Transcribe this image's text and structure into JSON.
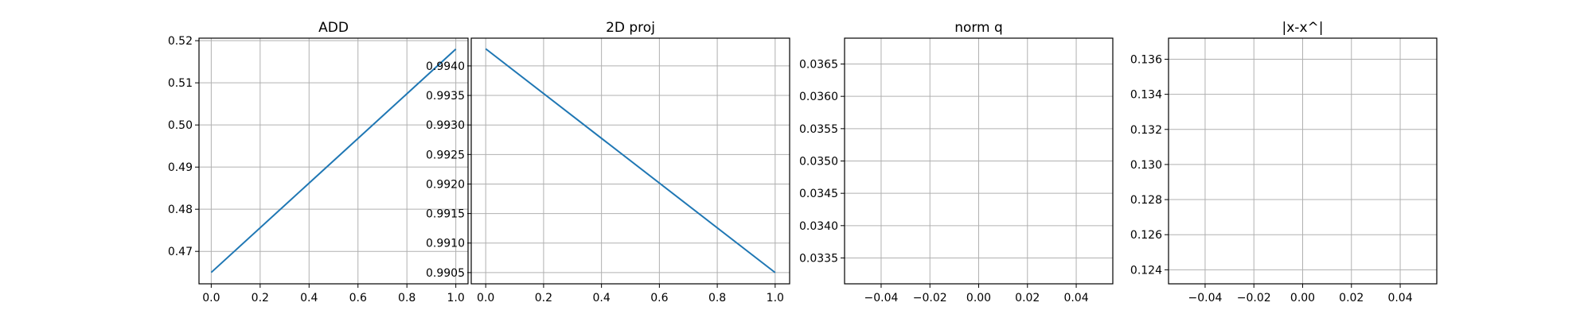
{
  "chart_data": [
    {
      "type": "line",
      "title": "ADD",
      "xlabel": "",
      "ylabel": "",
      "xlim": [
        -0.05,
        1.05
      ],
      "ylim": [
        0.4623,
        0.5206
      ],
      "xticks": [
        0.0,
        0.2,
        0.4,
        0.6,
        0.8,
        1.0
      ],
      "xtick_labels": [
        "0.0",
        "0.2",
        "0.4",
        "0.6",
        "0.8",
        "1.0"
      ],
      "yticks": [
        0.47,
        0.48,
        0.49,
        0.5,
        0.51,
        0.52
      ],
      "ytick_labels": [
        "0.47",
        "0.48",
        "0.49",
        "0.50",
        "0.51",
        "0.52"
      ],
      "grid": true,
      "series": [
        {
          "x": [
            0,
            1
          ],
          "y": [
            0.465,
            0.518
          ],
          "color": "#1f77b4"
        }
      ]
    },
    {
      "type": "line",
      "title": "2D proj",
      "xlabel": "",
      "ylabel": "",
      "xlim": [
        -0.05,
        1.05
      ],
      "ylim": [
        0.99031,
        0.99447
      ],
      "xticks": [
        0.0,
        0.2,
        0.4,
        0.6,
        0.8,
        1.0
      ],
      "xtick_labels": [
        "0.0",
        "0.2",
        "0.4",
        "0.6",
        "0.8",
        "1.0"
      ],
      "yticks": [
        0.9905,
        0.991,
        0.9915,
        0.992,
        0.9925,
        0.993,
        0.9935,
        0.994
      ],
      "ytick_labels": [
        "0.9905",
        "0.9910",
        "0.9915",
        "0.9920",
        "0.9925",
        "0.9930",
        "0.9935",
        "0.9940"
      ],
      "grid": true,
      "series": [
        {
          "x": [
            0,
            1
          ],
          "y": [
            0.99429,
            0.9905
          ],
          "color": "#1f77b4"
        }
      ]
    },
    {
      "type": "line",
      "title": "norm q",
      "xlabel": "",
      "ylabel": "",
      "xlim": [
        -0.055,
        0.055
      ],
      "ylim": [
        0.0331,
        0.0369
      ],
      "xticks": [
        -0.04,
        -0.02,
        0.0,
        0.02,
        0.04
      ],
      "xtick_labels": [
        "−0.04",
        "−0.02",
        "0.00",
        "0.02",
        "0.04"
      ],
      "yticks": [
        0.0335,
        0.034,
        0.0345,
        0.035,
        0.0355,
        0.036,
        0.0365
      ],
      "ytick_labels": [
        "0.0335",
        "0.0340",
        "0.0345",
        "0.0350",
        "0.0355",
        "0.0360",
        "0.0365"
      ],
      "grid": true,
      "series": []
    },
    {
      "type": "line",
      "title": "|x-x^|",
      "xlabel": "",
      "ylabel": "",
      "xlim": [
        -0.055,
        0.055
      ],
      "ylim": [
        0.1232,
        0.1372
      ],
      "xticks": [
        -0.04,
        -0.02,
        0.0,
        0.02,
        0.04
      ],
      "xtick_labels": [
        "−0.04",
        "−0.02",
        "0.00",
        "0.02",
        "0.04"
      ],
      "yticks": [
        0.124,
        0.126,
        0.128,
        0.13,
        0.132,
        0.134,
        0.136
      ],
      "ytick_labels": [
        "0.124",
        "0.126",
        "0.128",
        "0.130",
        "0.132",
        "0.134",
        "0.136"
      ],
      "grid": true,
      "series": []
    }
  ]
}
